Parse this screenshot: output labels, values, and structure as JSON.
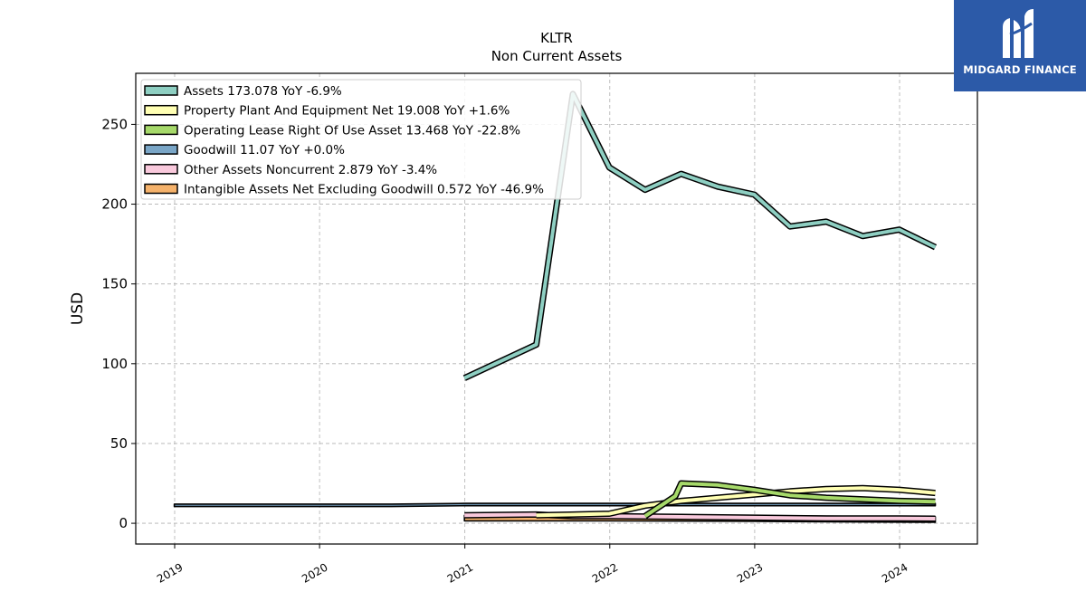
{
  "chart_data": {
    "type": "line",
    "title": "KLTR",
    "subtitle": "Non Current  Assets",
    "ylabel": "USD",
    "xlabel": "",
    "ylim": [
      -13,
      282
    ],
    "xlim": [
      "2018-09-25",
      "2024-07-15"
    ],
    "grid": true,
    "legend_position": "top-left",
    "yticks": [
      0,
      50,
      100,
      150,
      200,
      250
    ],
    "xticks": [
      {
        "label": "2019",
        "date": "2019-01-01"
      },
      {
        "label": "2020",
        "date": "2020-01-01"
      },
      {
        "label": "2021",
        "date": "2021-01-01"
      },
      {
        "label": "2022",
        "date": "2022-01-01"
      },
      {
        "label": "2023",
        "date": "2023-01-01"
      },
      {
        "label": "2024",
        "date": "2024-01-01"
      }
    ],
    "series": [
      {
        "name": "Assets",
        "legend": "Assets  173.078 YoY -6.9%",
        "color": "#8ecfc2",
        "points": [
          [
            "2020-12-31",
            91
          ],
          [
            "2021-06-30",
            112
          ],
          [
            "2021-09-30",
            269
          ],
          [
            "2021-12-31",
            223
          ],
          [
            "2022-03-31",
            209
          ],
          [
            "2022-06-30",
            219
          ],
          [
            "2022-09-30",
            211
          ],
          [
            "2022-12-31",
            206
          ],
          [
            "2023-03-31",
            186
          ],
          [
            "2023-06-30",
            189
          ],
          [
            "2023-09-30",
            180
          ],
          [
            "2023-12-31",
            184
          ],
          [
            "2024-03-31",
            173
          ]
        ]
      },
      {
        "name": "Property Plant And Equipment Net",
        "legend": "Property Plant And Equipment Net  19.008 YoY +1.6%",
        "color": "#ffffb3",
        "points": [
          [
            "2021-06-30",
            5
          ],
          [
            "2021-12-31",
            6
          ],
          [
            "2022-03-31",
            11
          ],
          [
            "2022-06-30",
            14
          ],
          [
            "2022-09-30",
            16
          ],
          [
            "2022-12-31",
            18
          ],
          [
            "2023-03-31",
            20
          ],
          [
            "2023-06-30",
            21.5
          ],
          [
            "2023-09-30",
            22
          ],
          [
            "2023-12-31",
            21
          ],
          [
            "2024-03-31",
            19
          ]
        ]
      },
      {
        "name": "Operating Lease Right Of Use Asset",
        "legend": "Operating Lease Right Of Use Asset  13.468 YoY -22.8%",
        "color": "#a6d96a",
        "points": [
          [
            "2022-03-31",
            4.5
          ],
          [
            "2022-06-15",
            17
          ],
          [
            "2022-06-30",
            25
          ],
          [
            "2022-09-30",
            24
          ],
          [
            "2022-12-31",
            21
          ],
          [
            "2023-03-31",
            17.5
          ],
          [
            "2023-06-30",
            16
          ],
          [
            "2023-09-30",
            15
          ],
          [
            "2023-12-31",
            14
          ],
          [
            "2024-03-31",
            13.5
          ]
        ]
      },
      {
        "name": "Goodwill",
        "legend": "Goodwill  11.07 YoY +0.0%",
        "color": "#7aa6c7",
        "band_top": 12,
        "points": [
          [
            "2018-12-31",
            10.5
          ],
          [
            "2019-12-31",
            10.5
          ],
          [
            "2020-06-30",
            10.5
          ],
          [
            "2020-12-31",
            11
          ],
          [
            "2021-12-31",
            11
          ],
          [
            "2022-12-31",
            11
          ],
          [
            "2024-03-31",
            11
          ]
        ]
      },
      {
        "name": "Other Assets Noncurrent",
        "legend": "Other Assets Noncurrent  2.879 YoY -3.4%",
        "color": "#f9c9dc",
        "points": [
          [
            "2020-12-31",
            5
          ],
          [
            "2021-06-30",
            5.5
          ],
          [
            "2021-09-30",
            4.5
          ],
          [
            "2021-12-31",
            4.5
          ],
          [
            "2022-06-30",
            4
          ],
          [
            "2022-12-31",
            3.5
          ],
          [
            "2023-06-30",
            3
          ],
          [
            "2023-12-31",
            3
          ],
          [
            "2024-03-31",
            2.9
          ]
        ]
      },
      {
        "name": "Intangible Assets Net Excluding Goodwill",
        "legend": "Intangible Assets Net Excluding Goodwill  0.572 YoY -46.9%",
        "color": "#f5b26b",
        "band_top": 5,
        "points": [
          [
            "2020-12-31",
            1.5
          ],
          [
            "2021-12-31",
            1.5
          ],
          [
            "2022-12-31",
            1.2
          ],
          [
            "2024-03-31",
            0.6
          ]
        ]
      }
    ]
  },
  "branding": {
    "name": "MIDGARD FINANCE",
    "logo_icon": "midgard-logo-icon",
    "background": "#2c5aa8"
  }
}
